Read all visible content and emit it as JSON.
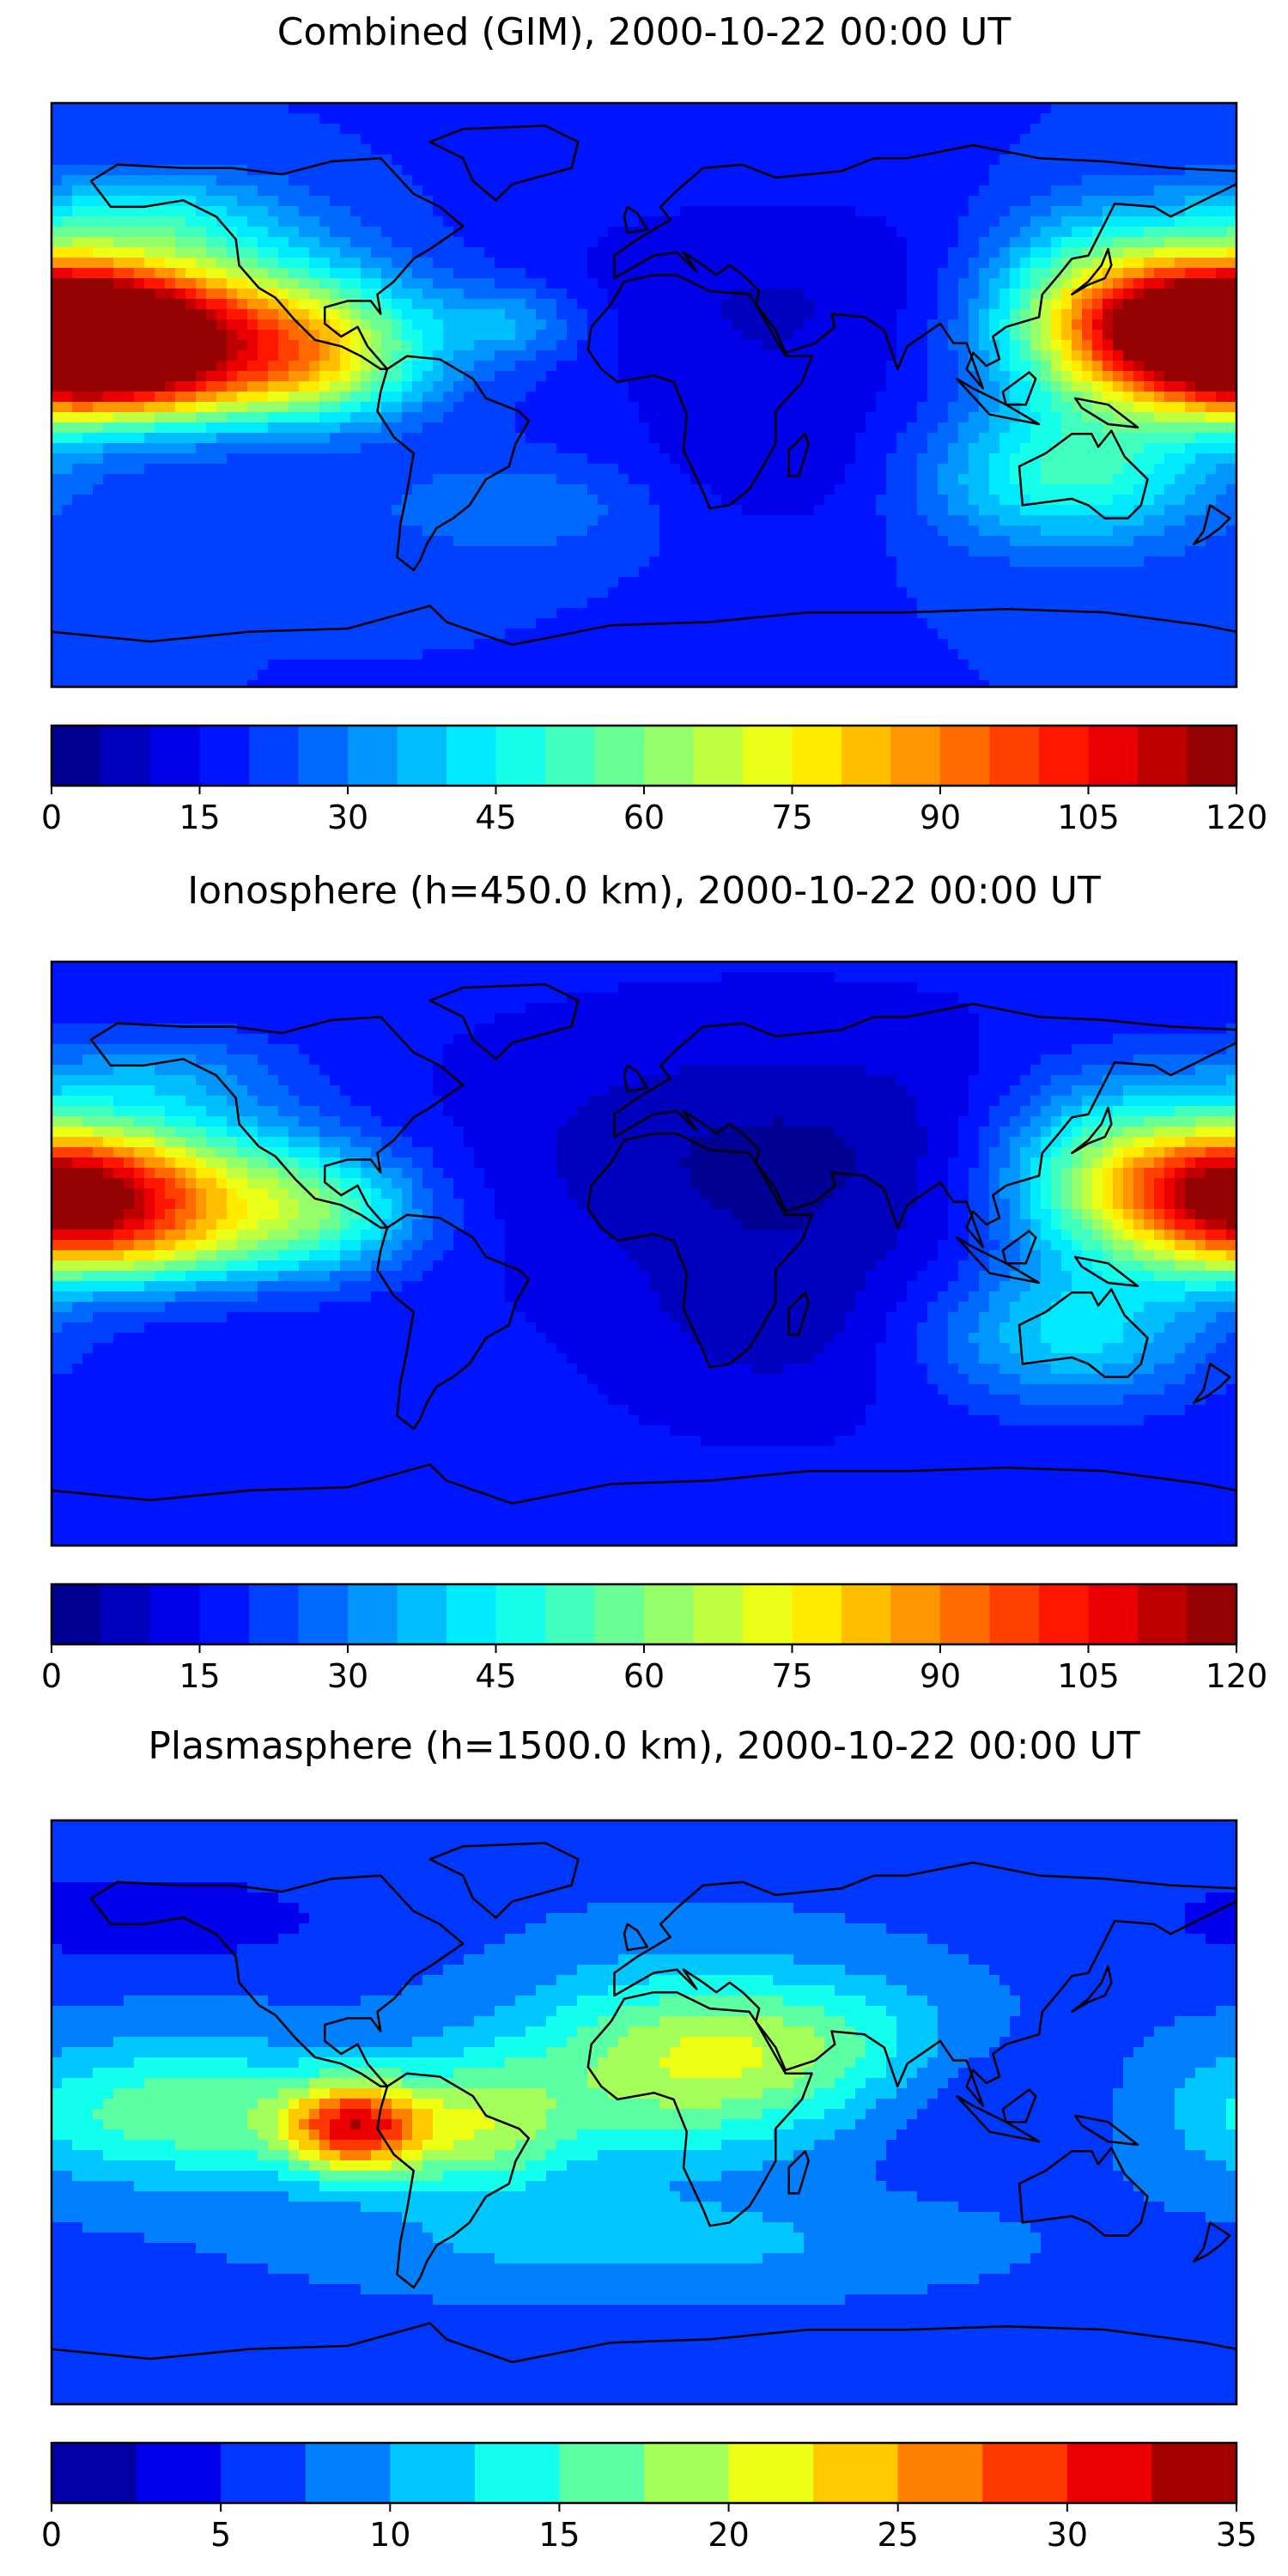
{
  "panels": [
    {
      "title": "Combined (GIM), 2000-10-22 00:00 UT",
      "colorbar": {
        "min": 0,
        "max": 120,
        "ticks": [
          "0",
          "15",
          "30",
          "45",
          "60",
          "75",
          "90",
          "105",
          "120"
        ],
        "bins": 24
      },
      "field": {
        "base": 20,
        "blobs": [
          {
            "lon": -150,
            "lat": 20,
            "amp": 90,
            "slon": 45,
            "slat": 16
          },
          {
            "lon": -145,
            "lat": 2,
            "amp": 25,
            "slon": 30,
            "slat": 8
          },
          {
            "lon": -95,
            "lat": 10,
            "amp": 25,
            "slon": 20,
            "slat": 12
          },
          {
            "lon": -40,
            "lat": 22,
            "amp": 15,
            "slon": 15,
            "slat": 8
          },
          {
            "lon": 180,
            "lat": 18,
            "amp": 80,
            "slon": 25,
            "slat": 15
          },
          {
            "lon": 140,
            "lat": 25,
            "amp": 45,
            "slon": 25,
            "slat": 20
          },
          {
            "lon": 130,
            "lat": -25,
            "amp": 30,
            "slon": 30,
            "slat": 15
          },
          {
            "lon": -40,
            "lat": -35,
            "amp": 10,
            "slon": 30,
            "slat": 10
          },
          {
            "lon": -150,
            "lat": 55,
            "amp": 20,
            "slon": 30,
            "slat": 10
          },
          {
            "lon": 40,
            "lat": 30,
            "amp": -10,
            "slon": 60,
            "slat": 25
          },
          {
            "lon": 40,
            "lat": -20,
            "amp": -8,
            "slon": 30,
            "slat": 20
          }
        ]
      }
    },
    {
      "title": "Ionosphere  (h=450.0 km), 2000-10-22 00:00 UT",
      "colorbar": {
        "min": 0,
        "max": 120,
        "ticks": [
          "0",
          "15",
          "30",
          "45",
          "60",
          "75",
          "90",
          "105",
          "120"
        ],
        "bins": 24
      },
      "field": {
        "base": 16,
        "blobs": [
          {
            "lon": -150,
            "lat": 18,
            "amp": 60,
            "slon": 40,
            "slat": 16
          },
          {
            "lon": -150,
            "lat": 2,
            "amp": 15,
            "slon": 30,
            "slat": 8
          },
          {
            "lon": -95,
            "lat": 12,
            "amp": 20,
            "slon": 20,
            "slat": 12
          },
          {
            "lon": 180,
            "lat": 18,
            "amp": 60,
            "slon": 25,
            "slat": 15
          },
          {
            "lon": 140,
            "lat": 25,
            "amp": 35,
            "slon": 25,
            "slat": 20
          },
          {
            "lon": 130,
            "lat": -25,
            "amp": 25,
            "slon": 30,
            "slat": 15
          },
          {
            "lon": -150,
            "lat": 55,
            "amp": 15,
            "slon": 30,
            "slat": 10
          },
          {
            "lon": 40,
            "lat": 30,
            "amp": -12,
            "slon": 60,
            "slat": 25
          },
          {
            "lon": 40,
            "lat": -20,
            "amp": -8,
            "slon": 30,
            "slat": 20
          }
        ]
      }
    },
    {
      "title": "Plasmasphere (h=1500.0 km), 2000-10-22 00:00 UT",
      "colorbar": {
        "min": 0,
        "max": 35,
        "ticks": [
          "0",
          "5",
          "10",
          "15",
          "20",
          "25",
          "30",
          "35"
        ],
        "bins": 14
      },
      "field": {
        "base": 7,
        "blobs": [
          {
            "lon": -88,
            "lat": -5,
            "amp": 20,
            "slon": 15,
            "slat": 10
          },
          {
            "lon": -140,
            "lat": 0,
            "amp": 10,
            "slon": 40,
            "slat": 15
          },
          {
            "lon": -50,
            "lat": -5,
            "amp": 10,
            "slon": 20,
            "slat": 15
          },
          {
            "lon": 10,
            "lat": 15,
            "amp": 12,
            "slon": 35,
            "slat": 20
          },
          {
            "lon": 60,
            "lat": 20,
            "amp": 6,
            "slon": 30,
            "slat": 15
          },
          {
            "lon": -150,
            "lat": 60,
            "amp": -4,
            "slon": 40,
            "slat": 10
          },
          {
            "lon": 100,
            "lat": 5,
            "amp": -3,
            "slon": 30,
            "slat": 15
          },
          {
            "lon": 0,
            "lat": -40,
            "amp": 4,
            "slon": 60,
            "slat": 10
          }
        ]
      }
    }
  ]
}
